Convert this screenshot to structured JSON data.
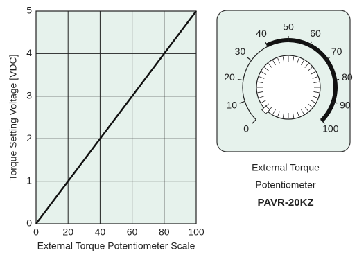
{
  "chart_data": {
    "type": "line",
    "xlabel": "External Torque Potentiometer Scale",
    "ylabel": "Torque Setting Voltage [VDC]",
    "x": [
      0,
      100
    ],
    "series": [
      {
        "color": "#111111",
        "values": [
          0,
          5
        ]
      }
    ],
    "xlim": [
      0,
      100
    ],
    "xticks": [
      0,
      20,
      40,
      60,
      80,
      100
    ],
    "ylim": [
      0,
      5
    ],
    "yticks": [
      0,
      1,
      2,
      3,
      4,
      5
    ],
    "grid": true
  },
  "potentiometer": {
    "scale_labels": [
      0,
      10,
      20,
      30,
      40,
      50,
      60,
      70,
      80,
      90,
      100
    ],
    "caption": [
      "External Torque",
      "Potentiometer"
    ],
    "model": "PAVR-20KZ"
  }
}
